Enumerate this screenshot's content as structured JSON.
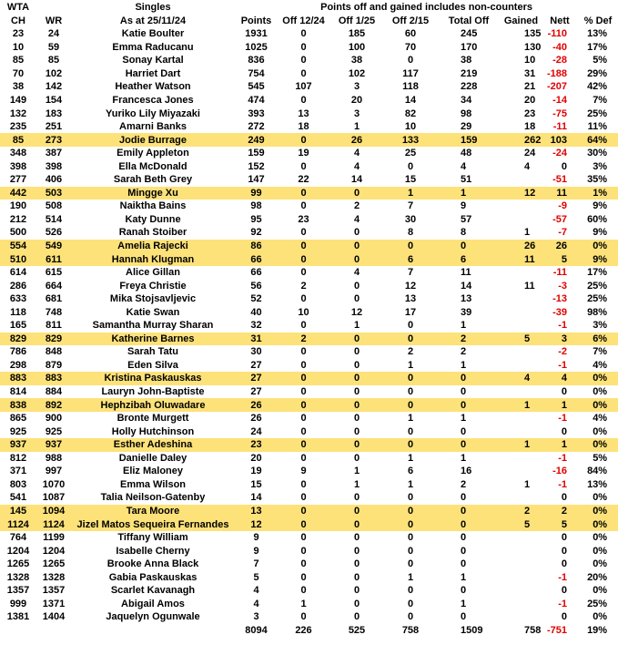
{
  "table": {
    "header": {
      "wta": "WTA",
      "singles": "Singles",
      "note": "Points off and gained includes non-counters",
      "columns": [
        "CH",
        "WR",
        "As at 25/11/24",
        "Points",
        "Off 12/24",
        "Off 1/25",
        "Off 2/15",
        "Total Off",
        "Gained",
        "Nett",
        "% Def"
      ]
    },
    "highlight_color": "#fde27a",
    "negative_color": "#e00000",
    "rows": [
      {
        "cells": [
          23,
          24,
          "Katie Boulter",
          1931,
          0,
          185,
          60,
          245,
          135,
          -110,
          "13%"
        ]
      },
      {
        "cells": [
          10,
          59,
          "Emma Raducanu",
          1025,
          0,
          100,
          70,
          170,
          130,
          -40,
          "17%"
        ]
      },
      {
        "cells": [
          85,
          85,
          "Sonay Kartal",
          836,
          0,
          38,
          0,
          38,
          10,
          -28,
          "5%"
        ]
      },
      {
        "cells": [
          70,
          102,
          "Harriet Dart",
          754,
          0,
          102,
          117,
          219,
          31,
          -188,
          "29%"
        ]
      },
      {
        "cells": [
          38,
          142,
          "Heather Watson",
          545,
          107,
          3,
          118,
          228,
          21,
          -207,
          "42%"
        ]
      },
      {
        "cells": [
          149,
          154,
          "Francesca Jones",
          474,
          0,
          20,
          14,
          34,
          20,
          -14,
          "7%"
        ]
      },
      {
        "cells": [
          132,
          183,
          "Yuriko Lily Miyazaki",
          393,
          13,
          3,
          82,
          98,
          23,
          -75,
          "25%"
        ]
      },
      {
        "cells": [
          235,
          251,
          "Amarni Banks",
          272,
          18,
          1,
          10,
          29,
          18,
          -11,
          "11%"
        ]
      },
      {
        "cells": [
          85,
          273,
          "Jodie Burrage",
          249,
          0,
          26,
          133,
          159,
          262,
          103,
          "64%"
        ],
        "highlighted": true
      },
      {
        "cells": [
          348,
          387,
          "Emily Appleton",
          159,
          19,
          4,
          25,
          48,
          24,
          -24,
          "30%"
        ]
      },
      {
        "cells": [
          398,
          398,
          "Ella McDonald",
          152,
          0,
          4,
          0,
          4,
          4,
          0,
          "3%"
        ]
      },
      {
        "cells": [
          277,
          406,
          "Sarah Beth Grey",
          147,
          22,
          14,
          15,
          51,
          null,
          -51,
          "35%"
        ]
      },
      {
        "cells": [
          442,
          503,
          "Mingge Xu",
          99,
          0,
          0,
          1,
          1,
          12,
          11,
          "1%"
        ],
        "highlighted": true
      },
      {
        "cells": [
          190,
          508,
          "Naiktha Bains",
          98,
          0,
          2,
          7,
          9,
          null,
          -9,
          "9%"
        ]
      },
      {
        "cells": [
          212,
          514,
          "Katy Dunne",
          95,
          23,
          4,
          30,
          57,
          null,
          -57,
          "60%"
        ]
      },
      {
        "cells": [
          500,
          526,
          "Ranah Stoiber",
          92,
          0,
          0,
          8,
          8,
          1,
          -7,
          "9%"
        ]
      },
      {
        "cells": [
          554,
          549,
          "Amelia Rajecki",
          86,
          0,
          0,
          0,
          0,
          26,
          26,
          "0%"
        ],
        "highlighted": true
      },
      {
        "cells": [
          510,
          611,
          "Hannah Klugman",
          66,
          0,
          0,
          6,
          6,
          11,
          5,
          "9%"
        ],
        "highlighted": true
      },
      {
        "cells": [
          614,
          615,
          "Alice Gillan",
          66,
          0,
          4,
          7,
          11,
          null,
          -11,
          "17%"
        ]
      },
      {
        "cells": [
          286,
          664,
          "Freya Christie",
          56,
          2,
          0,
          12,
          14,
          11,
          -3,
          "25%"
        ]
      },
      {
        "cells": [
          633,
          681,
          "Mika Stojsavljevic",
          52,
          0,
          0,
          13,
          13,
          null,
          -13,
          "25%"
        ]
      },
      {
        "cells": [
          118,
          748,
          "Katie Swan",
          40,
          10,
          12,
          17,
          39,
          null,
          -39,
          "98%"
        ]
      },
      {
        "cells": [
          165,
          811,
          "Samantha Murray Sharan",
          32,
          0,
          1,
          0,
          1,
          null,
          -1,
          "3%"
        ]
      },
      {
        "cells": [
          829,
          829,
          "Katherine Barnes",
          31,
          2,
          0,
          0,
          2,
          5,
          3,
          "6%"
        ],
        "highlighted": true
      },
      {
        "cells": [
          786,
          848,
          "Sarah Tatu",
          30,
          0,
          0,
          2,
          2,
          null,
          -2,
          "7%"
        ]
      },
      {
        "cells": [
          298,
          879,
          "Eden Silva",
          27,
          0,
          0,
          1,
          1,
          null,
          -1,
          "4%"
        ]
      },
      {
        "cells": [
          883,
          883,
          "Kristina Paskauskas",
          27,
          0,
          0,
          0,
          0,
          4,
          4,
          "0%"
        ],
        "highlighted": true
      },
      {
        "cells": [
          814,
          884,
          "Lauryn John-Baptiste",
          27,
          0,
          0,
          0,
          0,
          null,
          0,
          "0%"
        ]
      },
      {
        "cells": [
          838,
          892,
          "Hephzibah Oluwadare",
          26,
          0,
          0,
          0,
          0,
          1,
          1,
          "0%"
        ],
        "highlighted": true
      },
      {
        "cells": [
          865,
          900,
          "Bronte Murgett",
          26,
          0,
          0,
          1,
          1,
          null,
          -1,
          "4%"
        ]
      },
      {
        "cells": [
          925,
          925,
          "Holly Hutchinson",
          24,
          0,
          0,
          0,
          0,
          null,
          0,
          "0%"
        ]
      },
      {
        "cells": [
          937,
          937,
          "Esther Adeshina",
          23,
          0,
          0,
          0,
          0,
          1,
          1,
          "0%"
        ],
        "highlighted": true
      },
      {
        "cells": [
          812,
          988,
          "Danielle Daley",
          20,
          0,
          0,
          1,
          1,
          null,
          -1,
          "5%"
        ]
      },
      {
        "cells": [
          371,
          997,
          "Eliz Maloney",
          19,
          9,
          1,
          6,
          16,
          null,
          -16,
          "84%"
        ]
      },
      {
        "cells": [
          803,
          1070,
          "Emma Wilson",
          15,
          0,
          1,
          1,
          2,
          1,
          -1,
          "13%"
        ]
      },
      {
        "cells": [
          541,
          1087,
          "Talia Neilson-Gatenby",
          14,
          0,
          0,
          0,
          0,
          null,
          0,
          "0%"
        ]
      },
      {
        "cells": [
          145,
          1094,
          "Tara Moore",
          13,
          0,
          0,
          0,
          0,
          2,
          2,
          "0%"
        ],
        "highlighted": true
      },
      {
        "cells": [
          1124,
          1124,
          "Jizel Matos Sequeira Fernandes",
          12,
          0,
          0,
          0,
          0,
          5,
          5,
          "0%"
        ],
        "highlighted": true
      },
      {
        "cells": [
          764,
          1199,
          "Tiffany William",
          9,
          0,
          0,
          0,
          0,
          null,
          0,
          "0%"
        ]
      },
      {
        "cells": [
          1204,
          1204,
          "Isabelle Cherny",
          9,
          0,
          0,
          0,
          0,
          null,
          0,
          "0%"
        ]
      },
      {
        "cells": [
          1265,
          1265,
          "Brooke Anna Black",
          7,
          0,
          0,
          0,
          0,
          null,
          0,
          "0%"
        ]
      },
      {
        "cells": [
          1328,
          1328,
          "Gabia Paskauskas",
          5,
          0,
          0,
          1,
          1,
          null,
          -1,
          "20%"
        ]
      },
      {
        "cells": [
          1357,
          1357,
          "Scarlet Kavanagh",
          4,
          0,
          0,
          0,
          0,
          null,
          0,
          "0%"
        ]
      },
      {
        "cells": [
          999,
          1371,
          "Abigail Amos",
          4,
          1,
          0,
          0,
          1,
          null,
          -1,
          "25%"
        ]
      },
      {
        "cells": [
          1381,
          1404,
          "Jaquelyn Ogunwale",
          3,
          0,
          0,
          0,
          0,
          null,
          0,
          "0%"
        ]
      },
      {
        "cells": [
          null,
          null,
          null,
          8094,
          226,
          525,
          758,
          1509,
          758,
          -751,
          "19%"
        ]
      }
    ]
  }
}
